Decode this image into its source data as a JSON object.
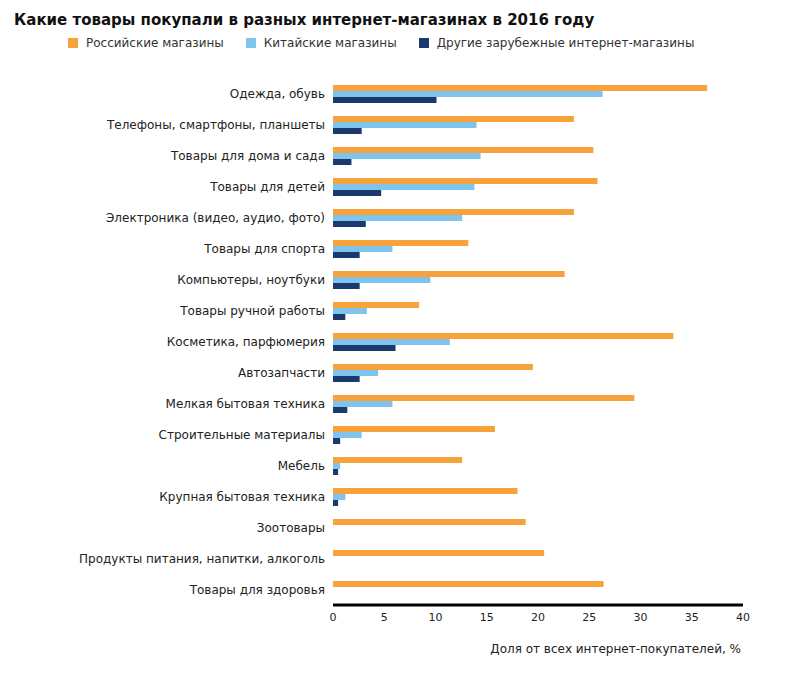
{
  "chart_data": {
    "type": "bar",
    "orientation": "horizontal",
    "title": "Какие товары покупали в разных интернет-магазинах в 2016 году",
    "xlabel": "Доля от всех интернет-покупателей, %",
    "categories": [
      "Одежда, обувь",
      "Телефоны, смартфоны, планшеты",
      "Товары для дома и сада",
      "Товары для детей",
      "Электроника (видео, аудио, фото)",
      "Товары для спорта",
      "Компьютеры, ноутбуки",
      "Товары ручной работы",
      "Косметика, парфюмерия",
      "Автозапчасти",
      "Мелкая бытовая техника",
      "Строительные материалы",
      "Мебель",
      "Крупная бытовая техника",
      "Зоотовары",
      "Продукты питания, напитки, алкоголь",
      "Товары для здоровья"
    ],
    "series": [
      {
        "name": "Российские магазины",
        "color": "#f7a23b",
        "values": [
          36.5,
          23.5,
          25.4,
          25.8,
          23.5,
          13.2,
          22.6,
          8.4,
          33.2,
          19.5,
          29.4,
          15.8,
          12.6,
          18.0,
          18.8,
          20.6,
          26.4
        ]
      },
      {
        "name": "Китайские магазины",
        "color": "#7ec4ec",
        "values": [
          26.3,
          14.0,
          14.4,
          13.8,
          12.6,
          5.8,
          9.5,
          3.3,
          11.4,
          4.4,
          5.8,
          2.8,
          0.7,
          1.2,
          null,
          null,
          null
        ]
      },
      {
        "name": "Другие зарубежные интернет-магазины",
        "color": "#1a3a6e",
        "values": [
          10.1,
          2.8,
          1.8,
          4.7,
          3.2,
          2.6,
          2.6,
          1.2,
          6.1,
          2.6,
          1.4,
          0.7,
          0.5,
          0.5,
          null,
          null,
          null
        ]
      }
    ],
    "xlim": [
      0,
      40
    ],
    "xticks": [
      0,
      5,
      10,
      15,
      20,
      25,
      30,
      35,
      40
    ],
    "grid": false,
    "legend": "top"
  }
}
